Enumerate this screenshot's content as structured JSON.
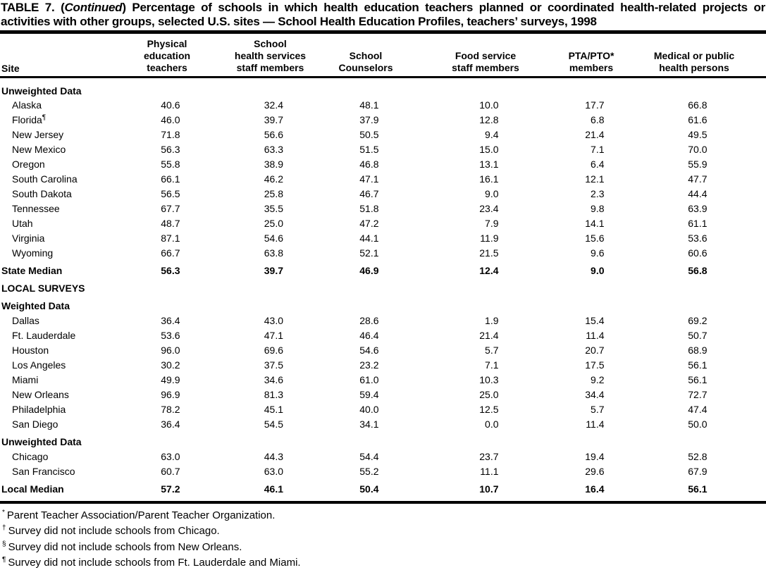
{
  "title": {
    "prefix": "TABLE 7. (",
    "continued": "Continued",
    "suffix": ") Percentage of schools in which health education teachers planned or coordinated health-related projects or activities with other groups, selected U.S. sites — School Health Education Profiles, teachers’ surveys, 1998"
  },
  "table": {
    "site_header": "Site",
    "columns": [
      {
        "lines": [
          "Physical",
          "education",
          "teachers"
        ]
      },
      {
        "lines": [
          "School",
          "health services",
          "staff members"
        ]
      },
      {
        "lines": [
          "School",
          "Counselors"
        ]
      },
      {
        "lines": [
          "Food service",
          "staff members"
        ]
      },
      {
        "lines": [
          "PTA/PTO*",
          "members"
        ]
      },
      {
        "lines": [
          "Medical or public",
          "health persons"
        ]
      }
    ],
    "rows": [
      {
        "kind": "section",
        "label": "Unweighted Data"
      },
      {
        "kind": "data",
        "site": "Alaska",
        "marker": "",
        "values": [
          "40.6",
          "32.4",
          "48.1",
          "10.0",
          "17.7",
          "66.8"
        ]
      },
      {
        "kind": "data",
        "site": "Florida",
        "marker": "¶",
        "values": [
          "46.0",
          "39.7",
          "37.9",
          "12.8",
          "6.8",
          "61.6"
        ]
      },
      {
        "kind": "data",
        "site": "New Jersey",
        "marker": "",
        "values": [
          "71.8",
          "56.6",
          "50.5",
          "9.4",
          "21.4",
          "49.5"
        ]
      },
      {
        "kind": "data",
        "site": "New Mexico",
        "marker": "",
        "values": [
          "56.3",
          "63.3",
          "51.5",
          "15.0",
          "7.1",
          "70.0"
        ]
      },
      {
        "kind": "data",
        "site": "Oregon",
        "marker": "",
        "values": [
          "55.8",
          "38.9",
          "46.8",
          "13.1",
          "6.4",
          "55.9"
        ]
      },
      {
        "kind": "data",
        "site": "South Carolina",
        "marker": "",
        "values": [
          "66.1",
          "46.2",
          "47.1",
          "16.1",
          "12.1",
          "47.7"
        ]
      },
      {
        "kind": "data",
        "site": "South Dakota",
        "marker": "",
        "values": [
          "56.5",
          "25.8",
          "46.7",
          "9.0",
          "2.3",
          "44.4"
        ]
      },
      {
        "kind": "data",
        "site": "Tennessee",
        "marker": "",
        "values": [
          "67.7",
          "35.5",
          "51.8",
          "23.4",
          "9.8",
          "63.9"
        ]
      },
      {
        "kind": "data",
        "site": "Utah",
        "marker": "",
        "values": [
          "48.7",
          "25.0",
          "47.2",
          "7.9",
          "14.1",
          "61.1"
        ]
      },
      {
        "kind": "data",
        "site": "Virginia",
        "marker": "",
        "values": [
          "87.1",
          "54.6",
          "44.1",
          "11.9",
          "15.6",
          "53.6"
        ]
      },
      {
        "kind": "data",
        "site": "Wyoming",
        "marker": "",
        "values": [
          "66.7",
          "63.8",
          "52.1",
          "21.5",
          "9.6",
          "60.6"
        ]
      },
      {
        "kind": "median",
        "site": "State Median",
        "marker": "",
        "values": [
          "56.3",
          "39.7",
          "46.9",
          "12.4",
          "9.0",
          "56.8"
        ]
      },
      {
        "kind": "section",
        "label": "LOCAL SURVEYS"
      },
      {
        "kind": "section",
        "label": "Weighted Data"
      },
      {
        "kind": "data",
        "site": "Dallas",
        "marker": "",
        "values": [
          "36.4",
          "43.0",
          "28.6",
          "1.9",
          "15.4",
          "69.2"
        ]
      },
      {
        "kind": "data",
        "site": "Ft. Lauderdale",
        "marker": "",
        "values": [
          "53.6",
          "47.1",
          "46.4",
          "21.4",
          "11.4",
          "50.7"
        ]
      },
      {
        "kind": "data",
        "site": "Houston",
        "marker": "",
        "values": [
          "96.0",
          "69.6",
          "54.6",
          "5.7",
          "20.7",
          "68.9"
        ]
      },
      {
        "kind": "data",
        "site": "Los Angeles",
        "marker": "",
        "values": [
          "30.2",
          "37.5",
          "23.2",
          "7.1",
          "17.5",
          "56.1"
        ]
      },
      {
        "kind": "data",
        "site": "Miami",
        "marker": "",
        "values": [
          "49.9",
          "34.6",
          "61.0",
          "10.3",
          "9.2",
          "56.1"
        ]
      },
      {
        "kind": "data",
        "site": "New Orleans",
        "marker": "",
        "values": [
          "96.9",
          "81.3",
          "59.4",
          "25.0",
          "34.4",
          "72.7"
        ]
      },
      {
        "kind": "data",
        "site": "Philadelphia",
        "marker": "",
        "values": [
          "78.2",
          "45.1",
          "40.0",
          "12.5",
          "5.7",
          "47.4"
        ]
      },
      {
        "kind": "data",
        "site": "San Diego",
        "marker": "",
        "values": [
          "36.4",
          "54.5",
          "34.1",
          "0.0",
          "11.4",
          "50.0"
        ]
      },
      {
        "kind": "section",
        "label": "Unweighted Data"
      },
      {
        "kind": "data",
        "site": "Chicago",
        "marker": "",
        "values": [
          "63.0",
          "44.3",
          "54.4",
          "23.7",
          "19.4",
          "52.8"
        ]
      },
      {
        "kind": "data",
        "site": "San Francisco",
        "marker": "",
        "values": [
          "60.7",
          "63.0",
          "55.2",
          "11.1",
          "29.6",
          "67.9"
        ]
      },
      {
        "kind": "median",
        "site": "Local Median",
        "marker": "",
        "values": [
          "57.2",
          "46.1",
          "50.4",
          "10.7",
          "16.4",
          "56.1"
        ]
      }
    ]
  },
  "footnotes": [
    {
      "marker": "*",
      "text": "Parent Teacher Association/Parent Teacher Organization."
    },
    {
      "marker": "†",
      "text": "Survey did not include schools from Chicago."
    },
    {
      "marker": "§",
      "text": "Survey did not include schools from New Orleans."
    },
    {
      "marker": "¶",
      "text": "Survey did not include schools from Ft. Lauderdale and Miami."
    }
  ]
}
